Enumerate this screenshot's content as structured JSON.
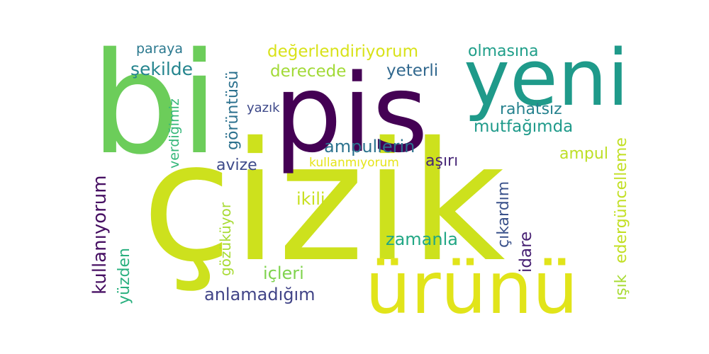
{
  "words": {
    "cizik": {
      "text": "çizik",
      "color": "#cde11d"
    },
    "bi": {
      "text": "bi",
      "color": "#6ccd5a"
    },
    "pis": {
      "text": "pis",
      "color": "#440154"
    },
    "yeni": {
      "text": "yeni",
      "color": "#1f9a8a"
    },
    "urunu": {
      "text": "ürünü",
      "color": "#e1e41a"
    },
    "degerlendiriyorum": {
      "text": "değerlendiriyorum",
      "color": "#d8e219"
    },
    "olmasina": {
      "text": "olmasına",
      "color": "#1f9e89"
    },
    "derecede": {
      "text": "derecede",
      "color": "#a2da37"
    },
    "yeterli": {
      "text": "yeterli",
      "color": "#31688e"
    },
    "paraya": {
      "text": "paraya",
      "color": "#2a788e"
    },
    "sekilde": {
      "text": "şekilde",
      "color": "#25858e"
    },
    "goruntusu": {
      "text": "görüntüsü",
      "color": "#2c718e"
    },
    "yazik": {
      "text": "yazık",
      "color": "#3e4989"
    },
    "verdigimiz": {
      "text": "verdiğimiz",
      "color": "#35b779"
    },
    "rahatsiz": {
      "text": "rahatsız",
      "color": "#26828e"
    },
    "mutfagimda": {
      "text": "mutfağımda",
      "color": "#1f9a8a"
    },
    "edergunceleme": {
      "text": "edergüncelleme",
      "color": "#c2df23"
    },
    "ampullerin": {
      "text": "ampullerin",
      "color": "#2c728e"
    },
    "ampul": {
      "text": "ampul",
      "color": "#bddf26"
    },
    "avize": {
      "text": "avize",
      "color": "#3e4a89"
    },
    "kullanmiyorum": {
      "text": "kullanmıyorum",
      "color": "#e5e419"
    },
    "asiri": {
      "text": "aşırı",
      "color": "#482878"
    },
    "kullaniyorum": {
      "text": "kullanıyorum",
      "color": "#471063"
    },
    "gozukuyor": {
      "text": "gözüküyor",
      "color": "#a8db34"
    },
    "ikili": {
      "text": "ikili",
      "color": "#c8e020"
    },
    "cikardim": {
      "text": "çıkardım",
      "color": "#3b528b"
    },
    "idare": {
      "text": "idare",
      "color": "#482173"
    },
    "zamanla": {
      "text": "zamanla",
      "color": "#22a785"
    },
    "yuzden": {
      "text": "yüzden",
      "color": "#2ab07f"
    },
    "icleri": {
      "text": "içleri",
      "color": "#7fd34e"
    },
    "isik": {
      "text": "ışık",
      "color": "#a8db34"
    },
    "anlamadigim": {
      "text": "anlamadığım",
      "color": "#414487"
    }
  }
}
